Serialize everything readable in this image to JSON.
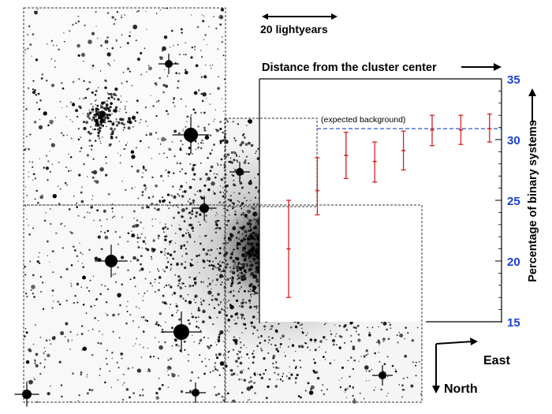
{
  "scale_bar": {
    "label": "20 lightyears"
  },
  "compass": {
    "east_label": "East",
    "north_label": "North"
  },
  "colors": {
    "tick_labels": "#1a3fd6",
    "error_bars": "#d62020",
    "background_line": "#2a56d8",
    "axes": "#000000",
    "image_background": "#ffffff",
    "stars": "#000000"
  },
  "chart_data": {
    "type": "scatter",
    "title": "Distance from the cluster center",
    "xlabel": "",
    "ylabel": "Percentage of binary systems",
    "ylim": [
      15,
      35
    ],
    "yticks": [
      15,
      20,
      25,
      30,
      35
    ],
    "grid": false,
    "annotations": [
      {
        "text": "(expected background)",
        "type": "reference_line",
        "y": 30.9
      }
    ],
    "points": [
      {
        "x": 1,
        "y": 21.0,
        "yerr_low": 17.0,
        "yerr_high": 25.0
      },
      {
        "x": 2,
        "y": 25.8,
        "yerr_low": 23.8,
        "yerr_high": 28.5
      },
      {
        "x": 3,
        "y": 28.7,
        "yerr_low": 26.8,
        "yerr_high": 30.6
      },
      {
        "x": 4,
        "y": 28.2,
        "yerr_low": 26.5,
        "yerr_high": 29.8
      },
      {
        "x": 5,
        "y": 29.1,
        "yerr_low": 27.5,
        "yerr_high": 30.7
      },
      {
        "x": 6,
        "y": 30.8,
        "yerr_low": 29.5,
        "yerr_high": 32.0
      },
      {
        "x": 7,
        "y": 30.8,
        "yerr_low": 29.6,
        "yerr_high": 32.0
      },
      {
        "x": 8,
        "y": 30.9,
        "yerr_low": 29.8,
        "yerr_high": 32.1
      }
    ]
  }
}
